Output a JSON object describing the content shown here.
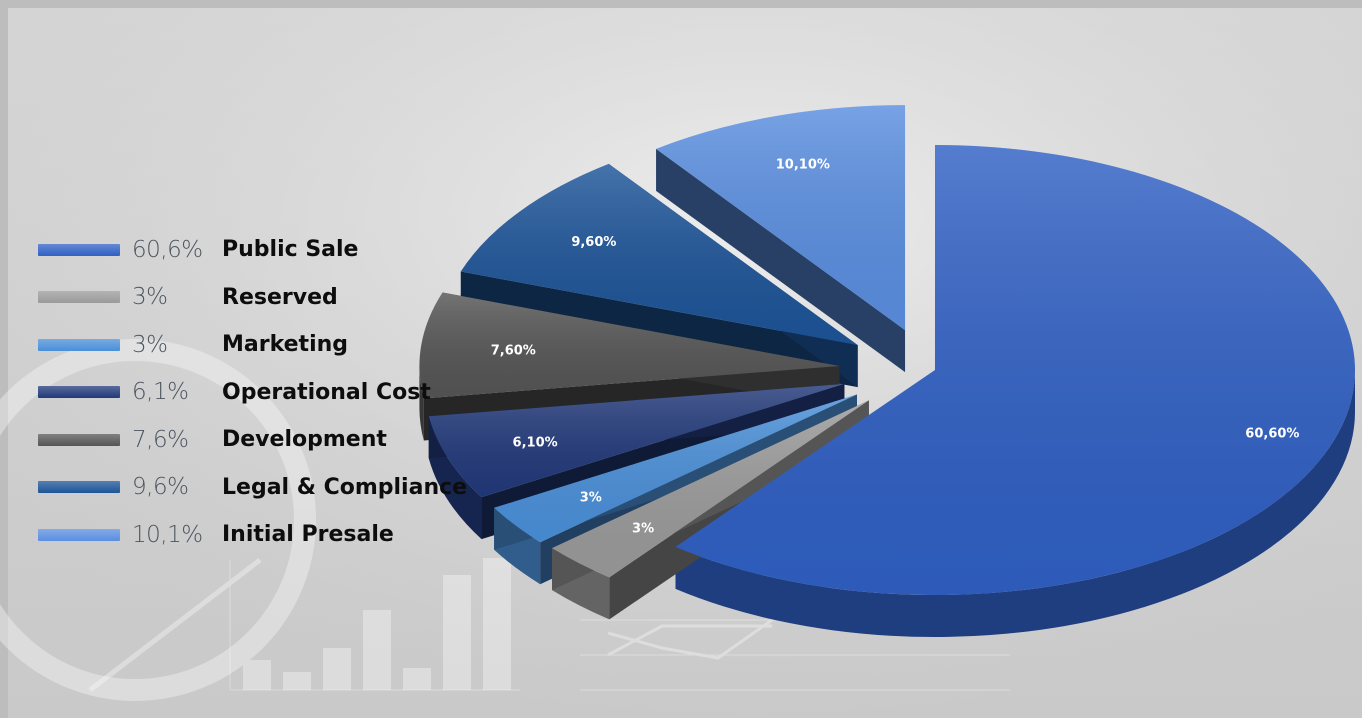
{
  "chart_data": {
    "type": "pie",
    "style": "3d-exploded",
    "legend_position": "left",
    "slices": [
      {
        "label": "Public Sale",
        "legend_value": "60,6%",
        "data_label": "60,60%",
        "value": 60.6,
        "color": "#3060c4"
      },
      {
        "label": "Reserved",
        "legend_value": "3%",
        "data_label": "3%",
        "value": 3,
        "color": "#9a9a9a"
      },
      {
        "label": "Marketing",
        "legend_value": "3%",
        "data_label": "3%",
        "value": 3,
        "color": "#4a8fd8"
      },
      {
        "label": "Operational Cost",
        "legend_value": "6,1%",
        "data_label": "6,10%",
        "value": 6.1,
        "color": "#22397a"
      },
      {
        "label": "Development",
        "legend_value": "7,6%",
        "data_label": "7,60%",
        "value": 7.6,
        "color": "#555555"
      },
      {
        "label": "Legal & Compliance",
        "legend_value": "9,6%",
        "data_label": "9,60%",
        "value": 9.6,
        "color": "#1d5498"
      },
      {
        "label": "Initial Presale",
        "legend_value": "10,1%",
        "data_label": "10,10%",
        "value": 10.1,
        "color": "#5a8ee0"
      }
    ]
  }
}
